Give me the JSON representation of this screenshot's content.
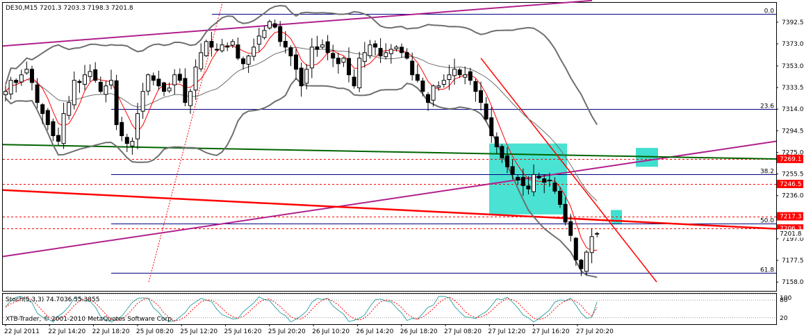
{
  "header": {
    "symbol_line": "DE30,M15  7201.3 7203.3 7198.3 7201.8"
  },
  "indicator": {
    "label": "Stoch(5,3,3) 74.7036 55.3855",
    "levels": [
      "100",
      "80",
      "20"
    ],
    "copyright": "XTB-Trader, © 2001-2010 MetaQuotes Software Corp."
  },
  "colors": {
    "background": "#ffffff",
    "candles": "#000000",
    "bollinger": "#6e6e6e",
    "moving_average": "#ff0000",
    "magenta_lines": "#b0208c",
    "green_line": "#006400",
    "red_trendline": "#ff0000",
    "fib_lines": "#000080",
    "zones": "#40e0d0",
    "price_label_red": "#ff0000",
    "price_label_current": "#000000"
  },
  "chart_data": {
    "type": "candlestick",
    "title": "DE30,M15",
    "ohlc_current": {
      "open": 7201.3,
      "high": 7203.3,
      "low": 7198.3,
      "close": 7201.8
    },
    "ylim": [
      7150,
      7410
    ],
    "y_ticks": [
      "7392.5",
      "7373.0",
      "7353.0",
      "7333.5",
      "7314.0",
      "7294.5",
      "7275.0",
      "7255.5",
      "7236.0",
      "7216.5",
      "7197.0",
      "7177.5",
      "7158.0"
    ],
    "x_ticks": [
      "22 Jul 2011",
      "22 Jul 14:20",
      "22 Jul 18:20",
      "25 Jul 08:20",
      "25 Jul 12:20",
      "25 Jul 16:20",
      "25 Jul 20:20",
      "26 Jul 10:20",
      "26 Jul 14:20",
      "26 Jul 18:20",
      "27 Jul 08:20",
      "27 Jul 12:20",
      "27 Jul 16:20",
      "27 Jul 20:20"
    ],
    "fibonacci_levels": [
      {
        "label": "0.0",
        "price": 7400
      },
      {
        "label": "23.6",
        "price": 7314
      },
      {
        "label": "38.2",
        "price": 7255.5
      },
      {
        "label": "50.0",
        "price": 7211
      },
      {
        "label": "61.8",
        "price": 7166
      }
    ],
    "price_labels": [
      {
        "text": "7269.1",
        "price": 7269.1,
        "kind": "red"
      },
      {
        "text": "7246.5",
        "price": 7246.5,
        "kind": "red"
      },
      {
        "text": "7217.3",
        "price": 7217.3,
        "kind": "red"
      },
      {
        "text": "7206.3",
        "price": 7206.3,
        "kind": "red"
      },
      {
        "text": "7201.8",
        "price": 7201.8,
        "kind": "current"
      }
    ],
    "horizontal_lines": [
      {
        "price": 7269.1,
        "style": "dashed"
      },
      {
        "price": 7246.5,
        "style": "dashed"
      },
      {
        "price": 7217.3,
        "style": "dashed"
      },
      {
        "price": 7206.3,
        "style": "dashed"
      }
    ],
    "close_series": [
      7330,
      7340,
      7338,
      7345,
      7350,
      7338,
      7320,
      7310,
      7300,
      7290,
      7285,
      7310,
      7320,
      7340,
      7338,
      7345,
      7348,
      7340,
      7330,
      7335,
      7340,
      7300,
      7290,
      7283,
      7285,
      7310,
      7330,
      7345,
      7340,
      7335,
      7330,
      7333,
      7345,
      7340,
      7320,
      7330,
      7352,
      7365,
      7375,
      7370,
      7368,
      7372,
      7370,
      7375,
      7360,
      7355,
      7362,
      7370,
      7380,
      7385,
      7393,
      7388,
      7375,
      7370,
      7362,
      7350,
      7335,
      7350,
      7370,
      7368,
      7372,
      7365,
      7360,
      7355,
      7360,
      7345,
      7335,
      7360,
      7365,
      7372,
      7370,
      7362,
      7365,
      7368,
      7370,
      7365,
      7360,
      7345,
      7340,
      7330,
      7320,
      7335,
      7335,
      7340,
      7345,
      7350,
      7345,
      7345,
      7340,
      7330,
      7320,
      7305,
      7290,
      7280,
      7270,
      7262,
      7255,
      7250,
      7245,
      7242,
      7255,
      7252,
      7248,
      7250,
      7240,
      7228,
      7212,
      7200,
      7178,
      7170,
      7185,
      7199,
      7201.8
    ],
    "stochastic": {
      "k_last": 74.7036,
      "d_last": 55.3855,
      "levels": [
        20,
        80,
        100
      ]
    }
  }
}
